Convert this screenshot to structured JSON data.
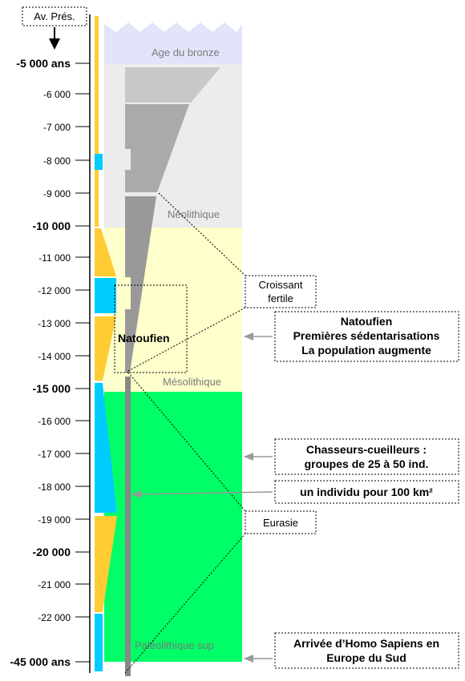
{
  "header_label": "Av. Prés.",
  "ticks": [
    {
      "label": "-5 000 ans",
      "major": true
    },
    {
      "label": "-6 000",
      "major": false
    },
    {
      "label": "-7 000",
      "major": false
    },
    {
      "label": "-8 000",
      "major": false
    },
    {
      "label": "-9 000",
      "major": false
    },
    {
      "label": "-10 000",
      "major": true
    },
    {
      "label": "-11 000",
      "major": false
    },
    {
      "label": "-12 000",
      "major": false
    },
    {
      "label": "-13 000",
      "major": false
    },
    {
      "label": "-14 000",
      "major": false
    },
    {
      "label": "-15 000",
      "major": true
    },
    {
      "label": "-16 000",
      "major": false
    },
    {
      "label": "-17 000",
      "major": false
    },
    {
      "label": "-18 000",
      "major": false
    },
    {
      "label": "-19 000",
      "major": false
    },
    {
      "label": "-20 000",
      "major": true
    },
    {
      "label": "-21 000",
      "major": false
    },
    {
      "label": "-22 000",
      "major": false
    },
    {
      "label": "-45 000 ans",
      "major": true
    }
  ],
  "periods": {
    "bronze": "Age du bronze",
    "neolithique": "Néolithique",
    "mesolithique": "Mésolithique",
    "paleolithique": "Paléolithique sup"
  },
  "labels": {
    "natoufien": "Natoufien",
    "croissant": [
      "Croissant",
      "fertile"
    ],
    "eurasie": "Eurasie"
  },
  "callouts": {
    "natoufien": [
      "Natoufien",
      "Premières sédentarisations",
      "La population augmente"
    ],
    "chasseurs": [
      "Chasseurs-cueilleurs :",
      "groupes de 25 à 50 ind."
    ],
    "densite": "un individu pour 100 km²",
    "arrivee": [
      "Arrivée d’Homo Sapiens en",
      "Europe du Sud"
    ]
  },
  "colors": {
    "bronze": "#e2e4fa",
    "neolithique": "#ececec",
    "mesolithique": "#ffffcc",
    "paleolithique": "#00ff66",
    "climate_yellow": "#ffcc33",
    "climate_cyan": "#00ccff",
    "population_grey": "#888888"
  }
}
